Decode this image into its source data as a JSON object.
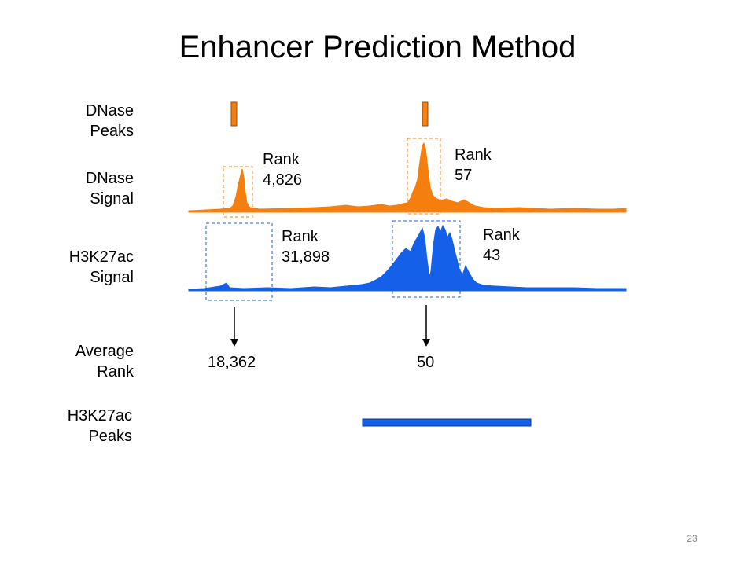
{
  "title": "Enhancer Prediction Method",
  "rows": {
    "dnase_peaks": [
      "DNase",
      "Peaks"
    ],
    "dnase_signal": [
      "DNase",
      "Signal"
    ],
    "h3k27ac_signal": [
      "H3K27ac",
      "Signal"
    ],
    "average_rank": [
      "Average",
      "Rank"
    ],
    "h3k27ac_peaks": [
      "H3K27ac",
      "Peaks"
    ]
  },
  "ranks": {
    "dnase_left": [
      "Rank",
      "4,826"
    ],
    "dnase_right": [
      "Rank",
      "57"
    ],
    "h3k27ac_left": [
      "Rank",
      "31,898"
    ],
    "h3k27ac_right": [
      "Rank",
      "43"
    ]
  },
  "average": {
    "left": "18,362",
    "right": "50"
  },
  "page_number": "23",
  "colors": {
    "dnase": "#f57f0e",
    "dnase_stroke": "#a04a00",
    "h3k27ac": "#1560e8",
    "h3k27ac_stroke": "#0b3a99",
    "box_dnase": "#f57f0e",
    "box_h3k27ac": "#1560e8"
  }
}
